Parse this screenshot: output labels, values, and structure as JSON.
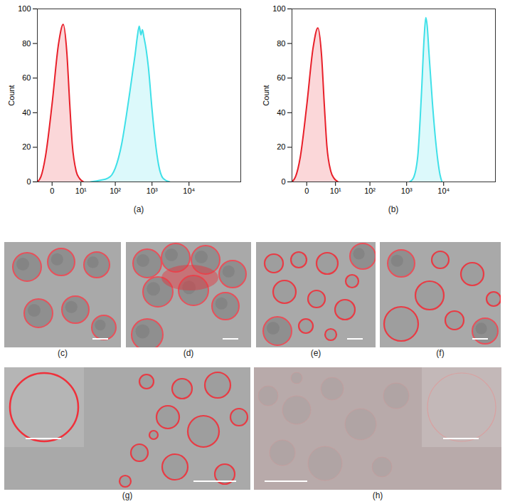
{
  "chart_data": [
    {
      "type": "area",
      "title": "(a)",
      "ylabel": "Count",
      "log": "x",
      "grid": false,
      "xlim": [
        -3,
        250000
      ],
      "ylim": [
        0,
        100
      ],
      "xticks": [
        0,
        {
          "value": 10,
          "label": "10¹"
        },
        {
          "value": 100,
          "label": "10²"
        },
        {
          "value": 1000,
          "label": "10³"
        },
        {
          "value": 10000,
          "label": "10⁴"
        }
      ],
      "yticks": [
        0,
        20,
        40,
        60,
        80,
        100
      ],
      "series": [
        {
          "color": "#e8202a",
          "x": [
            -3,
            -2,
            -1,
            0,
            1,
            2,
            3,
            4,
            5,
            7,
            9,
            12
          ],
          "values": [
            0,
            3,
            15,
            45,
            80,
            91,
            75,
            45,
            22,
            6,
            2,
            0
          ]
        },
        {
          "color": "#3fe0e8",
          "x": [
            20,
            40,
            60,
            80,
            100,
            150,
            200,
            250,
            300,
            350,
            400,
            450,
            500,
            550,
            600,
            700,
            800,
            1000,
            1200,
            1500,
            2000,
            3000
          ],
          "values": [
            0,
            1,
            2,
            4,
            8,
            22,
            38,
            52,
            64,
            74,
            84,
            90,
            85,
            88,
            84,
            76,
            66,
            42,
            25,
            10,
            2,
            0
          ]
        }
      ]
    },
    {
      "type": "area",
      "title": "(b)",
      "ylabel": "Count",
      "log": "x",
      "grid": false,
      "xlim": [
        -3,
        250000
      ],
      "ylim": [
        0,
        100
      ],
      "xticks": [
        0,
        {
          "value": 10,
          "label": "10¹"
        },
        {
          "value": 100,
          "label": "10²"
        },
        {
          "value": 1000,
          "label": "10³"
        },
        {
          "value": 10000,
          "label": "10⁴"
        }
      ],
      "yticks": [
        0,
        20,
        40,
        60,
        80,
        100
      ],
      "series": [
        {
          "color": "#e8202a",
          "x": [
            -3,
            -2,
            -1,
            0,
            1,
            2,
            3,
            4,
            5,
            7,
            9,
            12
          ],
          "values": [
            0,
            3,
            14,
            44,
            78,
            89,
            74,
            44,
            21,
            6,
            2,
            0
          ]
        },
        {
          "color": "#3fe0e8",
          "x": [
            1200,
            1500,
            2000,
            2500,
            3000,
            3300,
            3600,
            4000,
            5000,
            6000,
            7000,
            8000,
            9000
          ],
          "values": [
            0,
            2,
            15,
            50,
            85,
            95,
            90,
            75,
            45,
            25,
            12,
            4,
            0
          ]
        }
      ]
    }
  ],
  "images": [
    {
      "label": "(c)"
    },
    {
      "label": "(d)"
    },
    {
      "label": "(e)"
    },
    {
      "label": "(f)"
    },
    {
      "label": "(g)"
    },
    {
      "label": "(h)"
    }
  ]
}
